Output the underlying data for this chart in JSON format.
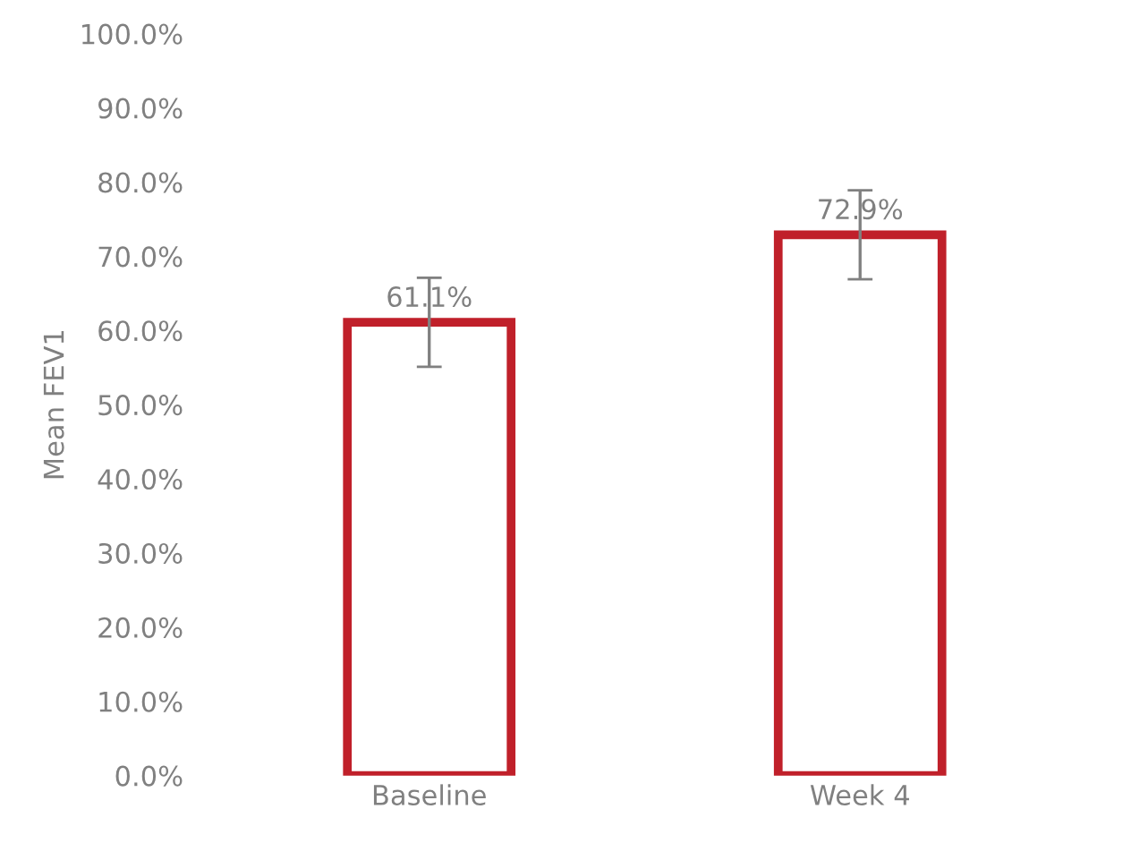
{
  "chart_data": {
    "type": "bar",
    "ylabel": "Mean FEV1",
    "categories": [
      "Baseline",
      "Week 4"
    ],
    "series": [
      {
        "color": "#c0202a",
        "values": [
          61.1,
          72.9
        ],
        "errors": [
          6,
          6
        ],
        "value_labels": [
          "61.1%",
          "72.9%"
        ]
      }
    ],
    "ylim": [
      0,
      100
    ],
    "yticks": [
      {
        "value": 0,
        "label": "0.0%"
      },
      {
        "value": 10,
        "label": "10.0%"
      },
      {
        "value": 20,
        "label": "20.0%"
      },
      {
        "value": 30,
        "label": "30.0%"
      },
      {
        "value": 40,
        "label": "40.0%"
      },
      {
        "value": 50,
        "label": "50.0%"
      },
      {
        "value": 60,
        "label": "60.0%"
      },
      {
        "value": 70,
        "label": "70.0%"
      },
      {
        "value": 80,
        "label": "80.0%"
      },
      {
        "value": 90,
        "label": "90.0%"
      },
      {
        "value": 100,
        "label": "100.0%"
      }
    ],
    "grid": false
  }
}
